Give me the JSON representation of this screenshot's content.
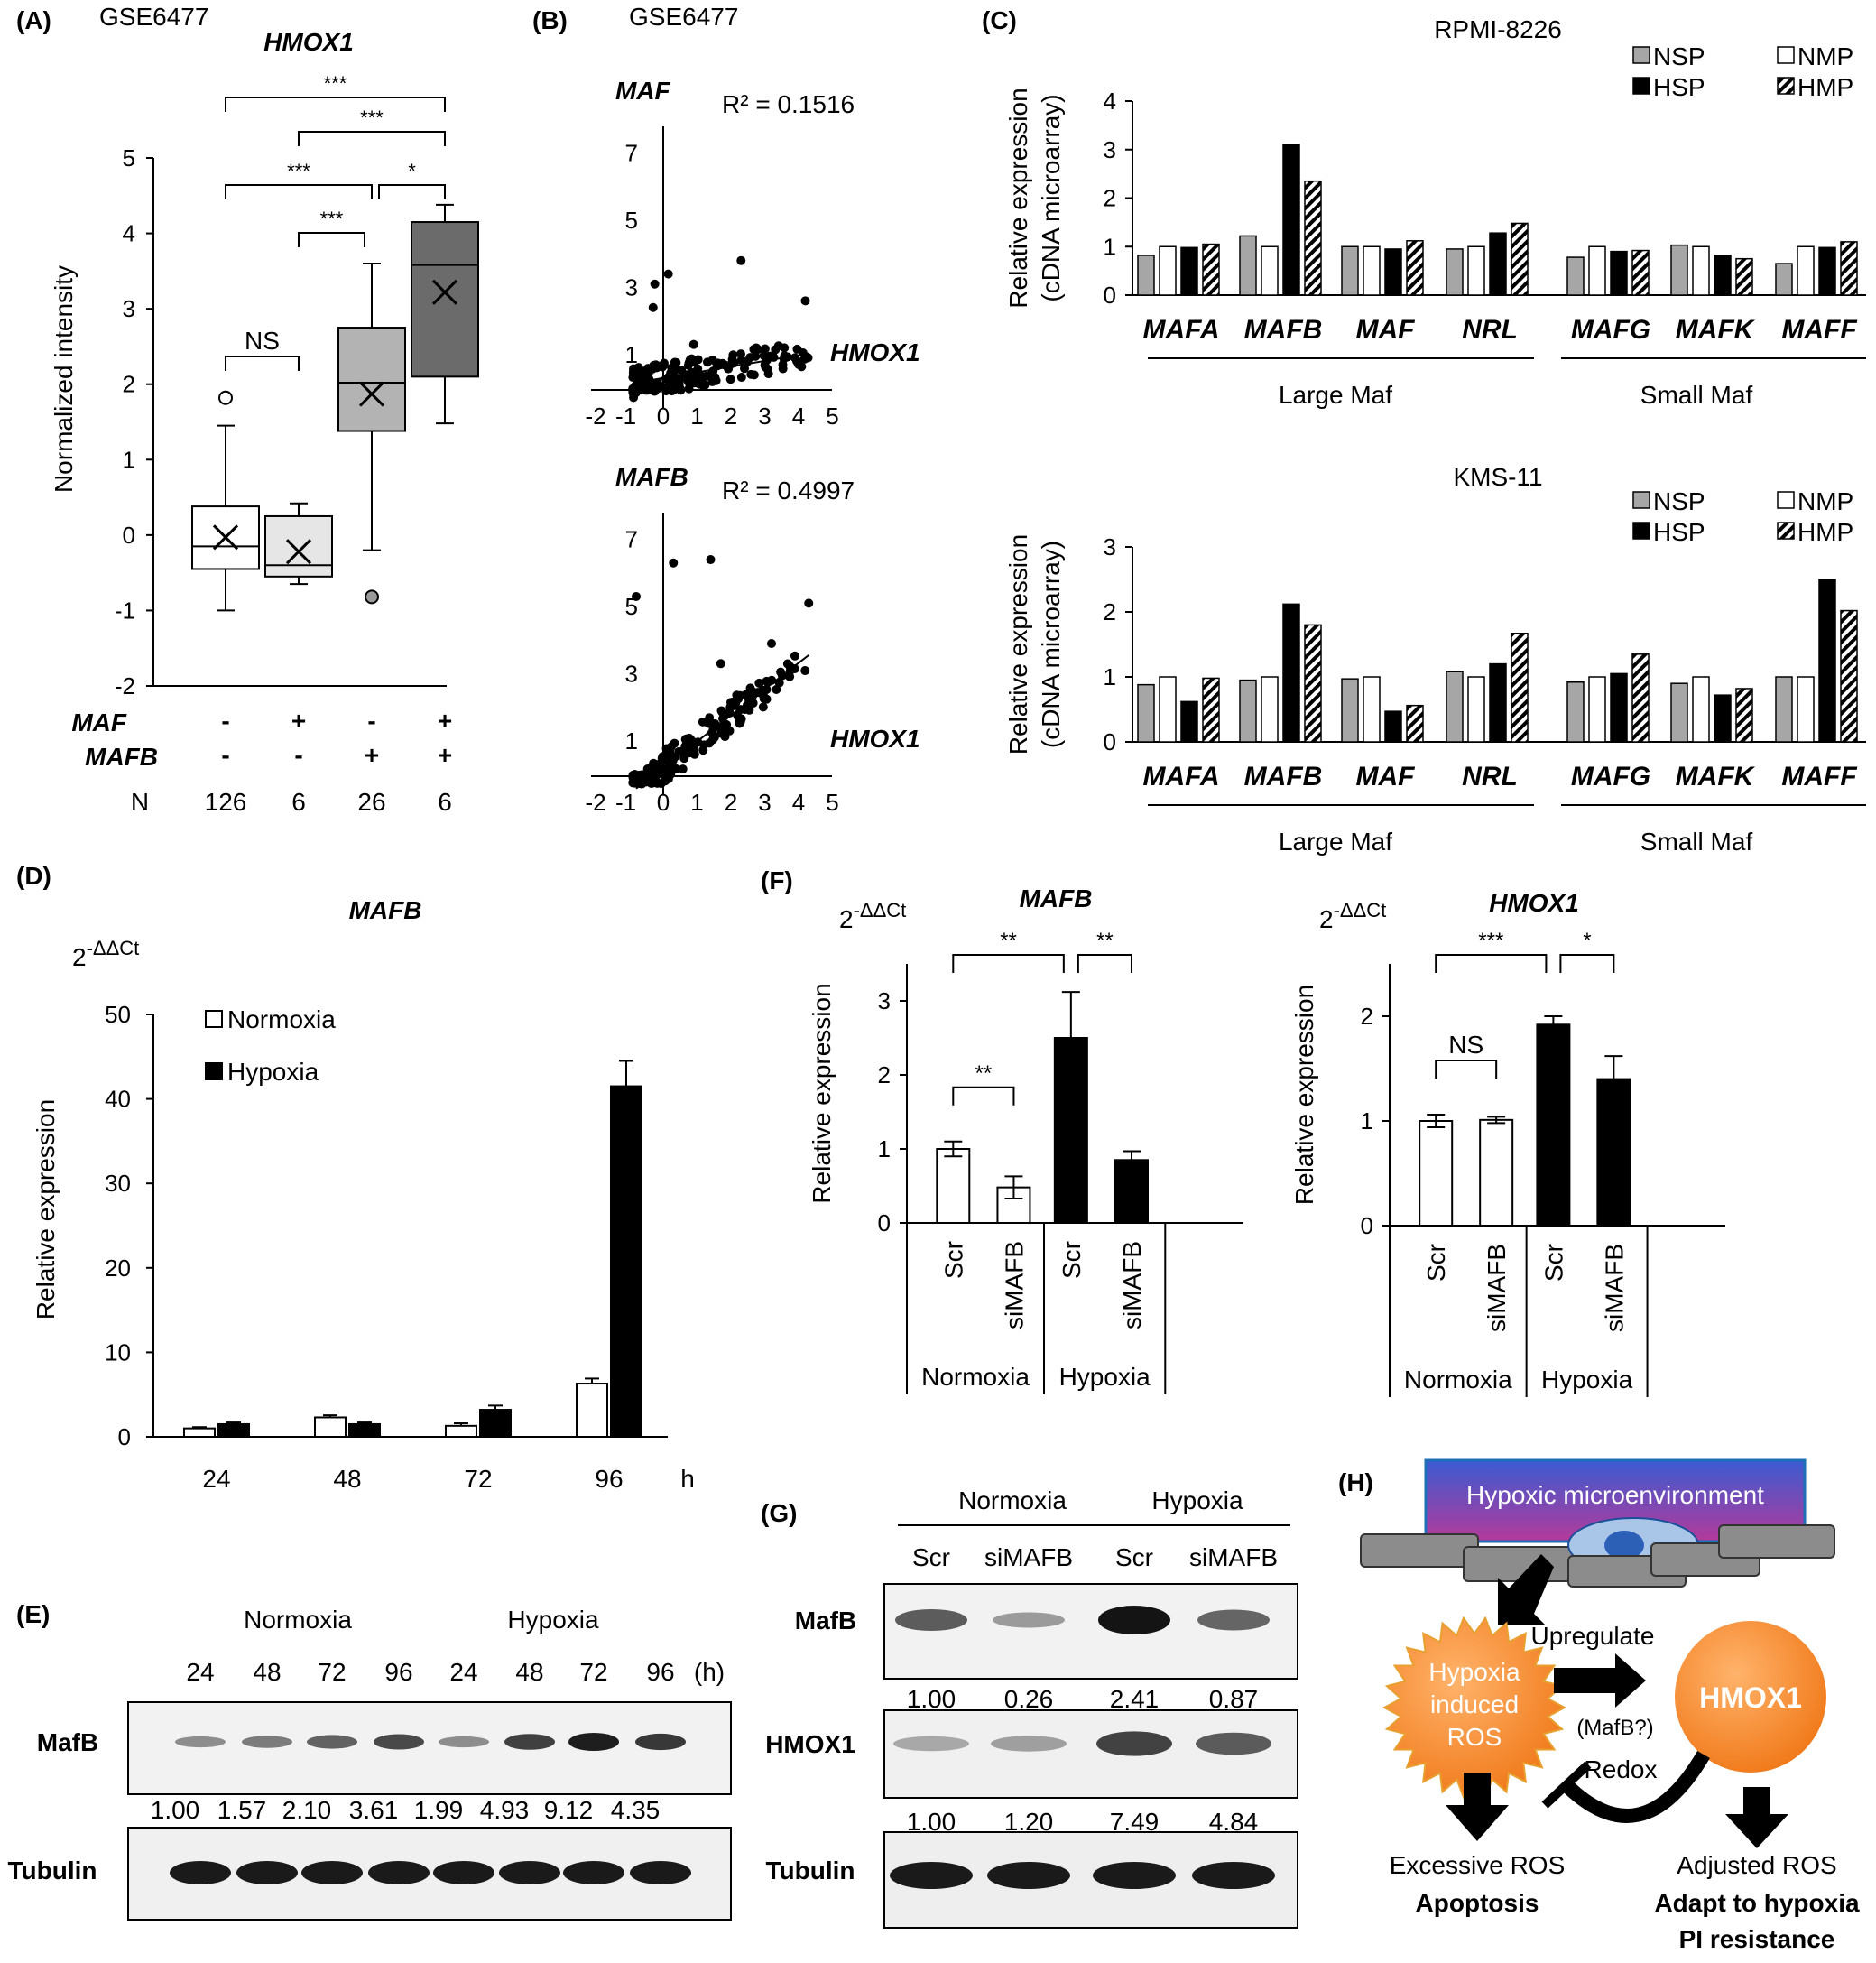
{
  "panels": {
    "A": {
      "label": "(A)",
      "dataset": "GSE6477",
      "gene": "HMOX1",
      "ylabel": "Normalized intensity",
      "maf_label": "MAF",
      "mafb_label": "MAFB",
      "n_label": "N",
      "groups": [
        {
          "maf": "-",
          "mafb": "-",
          "n": "126",
          "box": {
            "min": -1.0,
            "q1": -0.45,
            "median": -0.15,
            "q3": 0.38,
            "max": 1.45,
            "mean": -0.03
          },
          "outliers": [
            1.82
          ],
          "fill": "#ffffff"
        },
        {
          "maf": "+",
          "mafb": "-",
          "n": "6",
          "box": {
            "min": -0.65,
            "q1": -0.55,
            "median": -0.4,
            "q3": 0.25,
            "max": 0.42,
            "mean": -0.22
          },
          "outliers": [],
          "fill": "#e6e6e6"
        },
        {
          "maf": "-",
          "mafb": "+",
          "n": "26",
          "box": {
            "min": -0.2,
            "q1": 1.38,
            "median": 2.02,
            "q3": 2.75,
            "max": 3.6,
            "mean": 1.87
          },
          "outliers": [
            -0.82
          ],
          "fill": "#b3b3b3"
        },
        {
          "maf": "+",
          "mafb": "+",
          "n": "6",
          "box": {
            "min": 1.48,
            "q1": 2.1,
            "median": 3.58,
            "q3": 4.15,
            "max": 4.38,
            "mean": 3.22
          },
          "outliers": [],
          "fill": "#6b6b6b"
        }
      ],
      "yticks": [
        "5",
        "4",
        "3",
        "2",
        "1",
        "0",
        "-1",
        "-2"
      ],
      "brackets": [
        {
          "from": 0,
          "to": 3,
          "label": "***"
        },
        {
          "from": 1,
          "to": 3,
          "label": "***"
        },
        {
          "from": 0,
          "to": 2,
          "label": "***"
        },
        {
          "from": 2,
          "to": 3,
          "label": "*"
        },
        {
          "from": 1,
          "to": 2,
          "label": "***"
        },
        {
          "from": 0,
          "to": 1,
          "label": "NS"
        }
      ]
    },
    "B": {
      "label": "(B)",
      "dataset": "GSE6477",
      "xlabel": "HMOX1",
      "xticks": [
        "-2",
        "-1",
        "0",
        "1",
        "2",
        "3",
        "4",
        "5"
      ],
      "yticks": [
        "7",
        "5",
        "3",
        "1"
      ],
      "plots": [
        {
          "gene": "MAF",
          "r2": "R² = 0.1516",
          "slope": 0.17,
          "intercept": 0.3
        },
        {
          "gene": "MAFB",
          "r2": "R² = 0.4997",
          "slope": 0.78,
          "intercept": 0.2
        }
      ]
    },
    "C": {
      "label": "(C)",
      "ylabel_line1": "Relative expression",
      "ylabel_line2": "(cDNA microarray)",
      "genes": [
        "MAFA",
        "MAFB",
        "MAF",
        "NRL",
        "MAFG",
        "MAFK",
        "MAFF"
      ],
      "group_large": "Large Maf",
      "group_small": "Small Maf",
      "legend": [
        "NSP",
        "HSP",
        "NMP",
        "HMP"
      ],
      "colors": {
        "NSP": "#a6a6a6",
        "HSP": "#000000",
        "NMP": "#ffffff",
        "HMP": "hatch"
      },
      "charts": [
        {
          "title": "RPMI-8226",
          "yticks": [
            "4",
            "3",
            "2",
            "1",
            "0"
          ],
          "ymax": 4,
          "series": [
            {
              "name": "NSP",
              "values": [
                0.82,
                1.22,
                1.0,
                0.95,
                0.78,
                1.03,
                0.65
              ]
            },
            {
              "name": "NMP",
              "values": [
                1.0,
                1.0,
                1.0,
                1.0,
                1.0,
                1.0,
                1.0
              ]
            },
            {
              "name": "HSP",
              "values": [
                0.98,
                3.1,
                0.95,
                1.28,
                0.9,
                0.82,
                0.98
              ]
            },
            {
              "name": "HMP",
              "values": [
                1.05,
                2.35,
                1.12,
                1.48,
                0.92,
                0.75,
                1.1
              ]
            }
          ]
        },
        {
          "title": "KMS-11",
          "yticks": [
            "3",
            "2",
            "1",
            "0"
          ],
          "ymax": 3,
          "series": [
            {
              "name": "NSP",
              "values": [
                0.88,
                0.95,
                0.97,
                1.08,
                0.92,
                0.9,
                1.0
              ]
            },
            {
              "name": "NMP",
              "values": [
                1.0,
                1.0,
                1.0,
                1.0,
                1.0,
                1.0,
                1.0
              ]
            },
            {
              "name": "HSP",
              "values": [
                0.62,
                2.12,
                0.47,
                1.2,
                1.05,
                0.72,
                2.5
              ]
            },
            {
              "name": "HMP",
              "values": [
                0.98,
                1.8,
                0.56,
                1.67,
                1.35,
                0.82,
                2.02
              ]
            }
          ]
        }
      ]
    },
    "D": {
      "label": "(D)",
      "gene": "MAFB",
      "unit": "2",
      "unit_sup": "-ΔΔCt",
      "ylabel": "Relative expression",
      "legend": [
        "Normoxia",
        "Hypoxia"
      ],
      "categories": [
        "24",
        "48",
        "72",
        "96"
      ],
      "xunit": "h",
      "yticks": [
        "50",
        "40",
        "30",
        "20",
        "10",
        "0"
      ],
      "ymax": 50,
      "series": [
        {
          "name": "Normoxia",
          "values": [
            1.0,
            2.3,
            1.3,
            6.3
          ],
          "err": [
            0.15,
            0.25,
            0.3,
            0.6
          ]
        },
        {
          "name": "Hypoxia",
          "values": [
            1.5,
            1.5,
            3.2,
            41.5
          ],
          "err": [
            0.2,
            0.2,
            0.5,
            3.0
          ]
        }
      ]
    },
    "E": {
      "label": "(E)",
      "cond": [
        "Normoxia",
        "Hypoxia"
      ],
      "times": [
        "24",
        "48",
        "72",
        "96",
        "24",
        "48",
        "72",
        "96"
      ],
      "tunit": "(h)",
      "row1": "MafB",
      "row2": "Tubulin",
      "quant": [
        "1.00",
        "1.57",
        "2.10",
        "3.61",
        "1.99",
        "4.93",
        "9.12",
        "4.35"
      ],
      "band_intensity": [
        0.35,
        0.45,
        0.6,
        0.75,
        0.35,
        0.8,
        1.0,
        0.85
      ]
    },
    "F": {
      "label": "(F)",
      "unit": "2",
      "unit_sup": "-ΔΔCt",
      "ylabel": "Relative expression",
      "xlabels": [
        "Scr",
        "siMAFB",
        "Scr",
        "siMAFB"
      ],
      "conds": [
        "Normoxia",
        "Hypoxia"
      ],
      "charts": [
        {
          "gene": "MAFB",
          "yticks": [
            "3",
            "2",
            "1",
            "0"
          ],
          "ymax": 3.5,
          "values": [
            1.0,
            0.48,
            2.5,
            0.85
          ],
          "err": [
            0.1,
            0.15,
            0.62,
            0.12
          ],
          "brackets": [
            {
              "from": 0,
              "to": 2,
              "label": "**"
            },
            {
              "from": 2,
              "to": 3,
              "label": "**"
            },
            {
              "from": 0,
              "to": 1,
              "label": "**"
            }
          ]
        },
        {
          "gene": "HMOX1",
          "yticks": [
            "2",
            "1",
            "0"
          ],
          "ymax": 2.5,
          "values": [
            1.0,
            1.01,
            1.92,
            1.4
          ],
          "err": [
            0.06,
            0.03,
            0.08,
            0.22
          ],
          "brackets": [
            {
              "from": 0,
              "to": 2,
              "label": "***"
            },
            {
              "from": 2,
              "to": 3,
              "label": "*"
            },
            {
              "from": 0,
              "to": 1,
              "label": "NS"
            }
          ]
        }
      ]
    },
    "G": {
      "label": "(G)",
      "cond": [
        "Normoxia",
        "Hypoxia"
      ],
      "lanes": [
        "Scr",
        "siMAFB",
        "Scr",
        "siMAFB"
      ],
      "row1": "MafB",
      "row2": "HMOX1",
      "row3": "Tubulin",
      "quant1": [
        "1.00",
        "0.26",
        "2.41",
        "0.87"
      ],
      "quant2": [
        "1.00",
        "1.20",
        "7.49",
        "4.84"
      ]
    },
    "H": {
      "label": "(H)",
      "micro": "Hypoxic microenvironment",
      "ros": [
        "Hypoxia",
        "induced",
        "ROS"
      ],
      "hmox": "HMOX1",
      "upregulate": "Upregulate",
      "mafb_q": "(MafB?)",
      "redox": "Redox",
      "left_out": "Excessive ROS",
      "left_bold": "Apoptosis",
      "right_out": "Adjusted ROS",
      "right_bold1": "Adapt to hypoxia",
      "right_bold2": "PI resistance"
    }
  }
}
